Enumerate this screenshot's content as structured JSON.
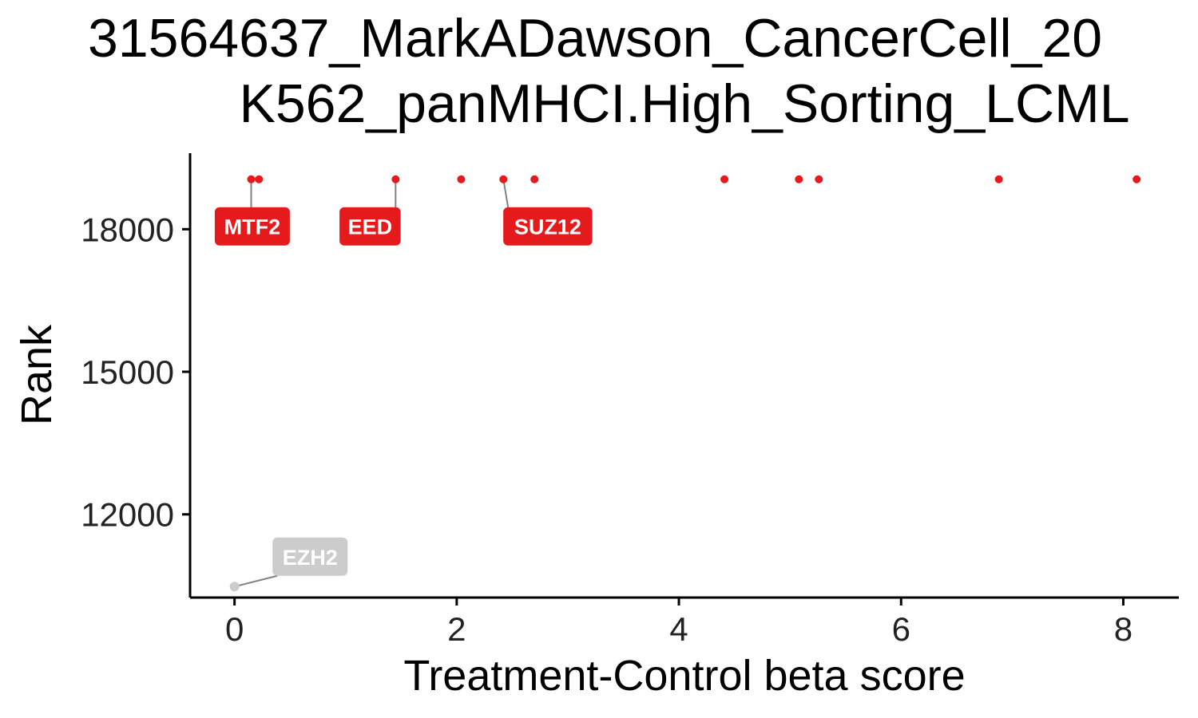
{
  "chart_data": {
    "type": "scatter",
    "title_line1": "31564637_MarkADawson_CancerCell_20",
    "title_line2": "K562_panMHCI.High_Sorting_LCML",
    "xlabel": "Treatment-Control beta score",
    "ylabel": "Rank",
    "xlim": [
      -0.4,
      8.5
    ],
    "ylim": [
      10250,
      19600
    ],
    "x_ticks": [
      0,
      2,
      4,
      6,
      8
    ],
    "x_tick_labels": [
      "0",
      "2",
      "4",
      "6",
      "8"
    ],
    "y_ticks": [
      12000,
      15000,
      18000
    ],
    "y_tick_labels": [
      "12000",
      "15000",
      "18000"
    ],
    "grid": false,
    "colors": {
      "highlight": "#e41a1c",
      "muted": "#cccccc",
      "axis": "#000000",
      "connector": "#808080"
    },
    "points": [
      {
        "x": 0.15,
        "y": 19050
      },
      {
        "x": 0.22,
        "y": 19050
      },
      {
        "x": 1.45,
        "y": 19050
      },
      {
        "x": 2.04,
        "y": 19050
      },
      {
        "x": 2.42,
        "y": 19050
      },
      {
        "x": 2.7,
        "y": 19050
      },
      {
        "x": 4.41,
        "y": 19050
      },
      {
        "x": 5.08,
        "y": 19050
      },
      {
        "x": 5.26,
        "y": 19050
      },
      {
        "x": 6.88,
        "y": 19050
      },
      {
        "x": 8.12,
        "y": 19050
      }
    ],
    "muted_points": [
      {
        "x": 0.0,
        "y": 10480
      }
    ],
    "labels": [
      {
        "text": "MTF2",
        "x": 0.15,
        "y": 19050,
        "lx": 0.16,
        "ly": 18060,
        "color": "#e41a1c"
      },
      {
        "text": "EED",
        "x": 1.45,
        "y": 19050,
        "lx": 1.22,
        "ly": 18060,
        "color": "#e41a1c"
      },
      {
        "text": "SUZ12",
        "x": 2.42,
        "y": 19050,
        "lx": 2.82,
        "ly": 18060,
        "color": "#e41a1c"
      },
      {
        "text": "EZH2",
        "x": 0.0,
        "y": 10480,
        "lx": 0.68,
        "ly": 11110,
        "color": "#cccccc"
      }
    ]
  }
}
